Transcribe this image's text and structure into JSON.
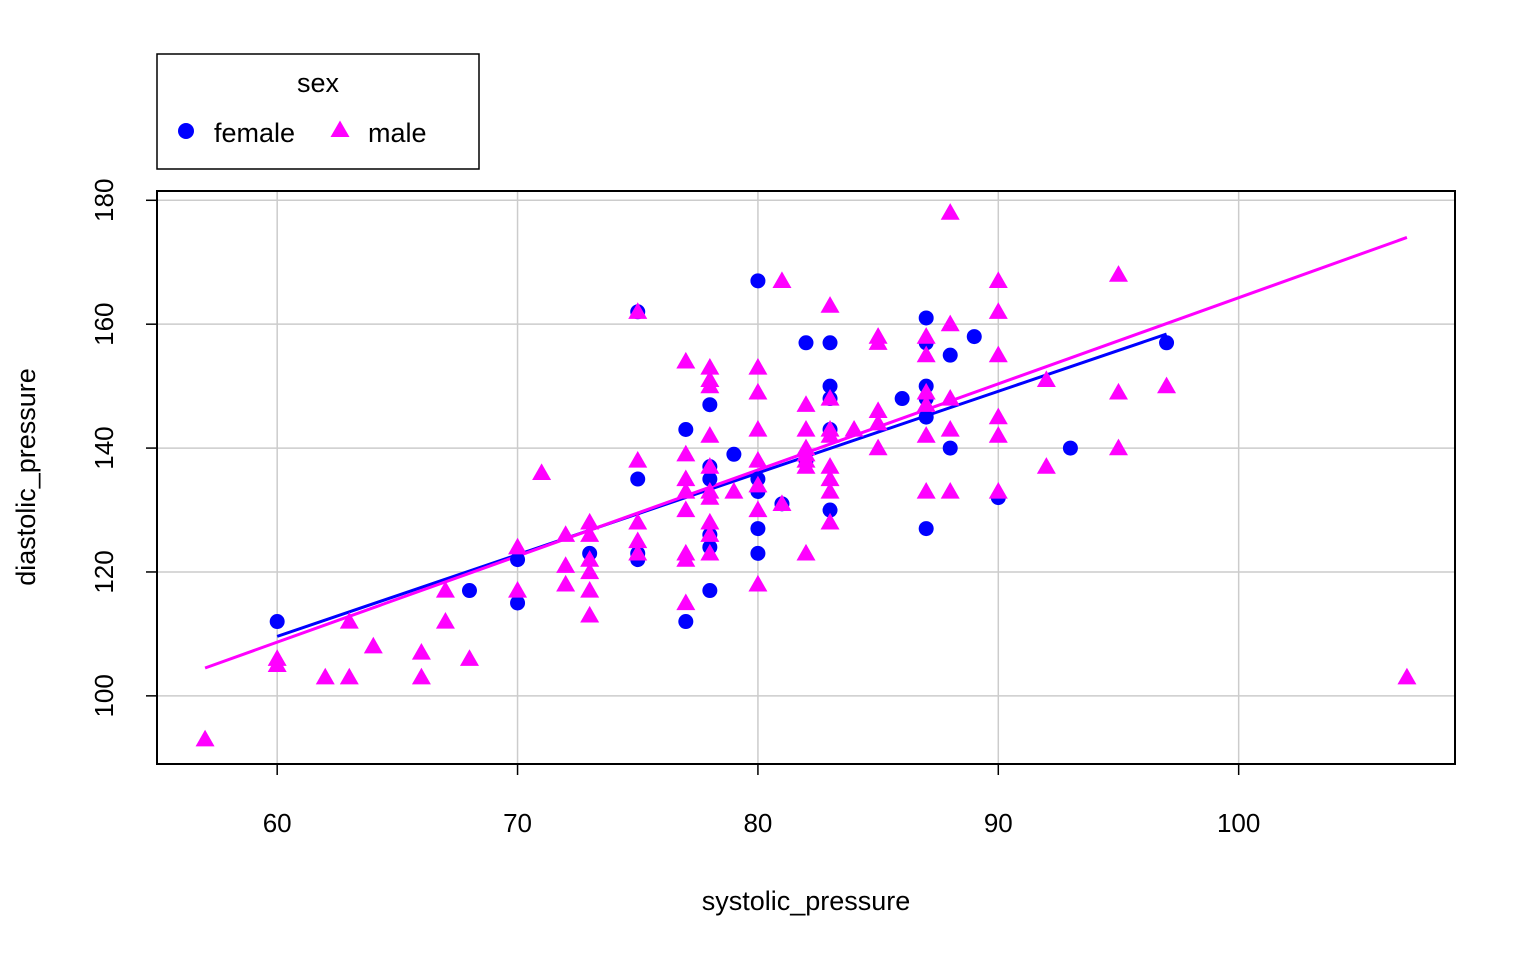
{
  "chart_data": {
    "type": "scatter",
    "title": "",
    "xlabel": "systolic_pressure",
    "ylabel": "diastolic_pressure",
    "xlim": [
      55,
      109
    ],
    "ylim": [
      89,
      181.5
    ],
    "x_ticks": [
      60,
      70,
      80,
      90,
      100
    ],
    "y_ticks": [
      100,
      120,
      140,
      160,
      180
    ],
    "grid": true,
    "legend": {
      "title": "sex",
      "placement": "top-left, above plot",
      "entries": [
        "female",
        "male"
      ]
    },
    "series": [
      {
        "name": "female",
        "color": "#0000ff",
        "marker": "circle",
        "points": [
          [
            60,
            112
          ],
          [
            68,
            117
          ],
          [
            70,
            122
          ],
          [
            70,
            115
          ],
          [
            73,
            123
          ],
          [
            75,
            162
          ],
          [
            75,
            135
          ],
          [
            75,
            123
          ],
          [
            75,
            122
          ],
          [
            77,
            143
          ],
          [
            77,
            112
          ],
          [
            78,
            147
          ],
          [
            78,
            137
          ],
          [
            78,
            135
          ],
          [
            78,
            126
          ],
          [
            78,
            124
          ],
          [
            78,
            117
          ],
          [
            79,
            139
          ],
          [
            80,
            167
          ],
          [
            80,
            135
          ],
          [
            80,
            133
          ],
          [
            80,
            127
          ],
          [
            80,
            123
          ],
          [
            81,
            131
          ],
          [
            82,
            157
          ],
          [
            82,
            138
          ],
          [
            83,
            157
          ],
          [
            83,
            150
          ],
          [
            83,
            148
          ],
          [
            83,
            143
          ],
          [
            83,
            130
          ],
          [
            86,
            148
          ],
          [
            87,
            161
          ],
          [
            87,
            157
          ],
          [
            87,
            150
          ],
          [
            87,
            148
          ],
          [
            87,
            145
          ],
          [
            87,
            127
          ],
          [
            88,
            155
          ],
          [
            88,
            140
          ],
          [
            89,
            158
          ],
          [
            90,
            132
          ],
          [
            93,
            140
          ],
          [
            97,
            157
          ]
        ],
        "regression": {
          "x": [
            60,
            97
          ],
          "y": [
            109.6,
            158.4
          ]
        }
      },
      {
        "name": "male",
        "color": "#ff00ff",
        "marker": "triangle",
        "points": [
          [
            57,
            93
          ],
          [
            60,
            106
          ],
          [
            60,
            105
          ],
          [
            62,
            103
          ],
          [
            63,
            112
          ],
          [
            63,
            103
          ],
          [
            64,
            108
          ],
          [
            66,
            107
          ],
          [
            66,
            103
          ],
          [
            67,
            117
          ],
          [
            67,
            112
          ],
          [
            68,
            106
          ],
          [
            70,
            124
          ],
          [
            70,
            117
          ],
          [
            71,
            136
          ],
          [
            72,
            126
          ],
          [
            72,
            121
          ],
          [
            72,
            118
          ],
          [
            73,
            128
          ],
          [
            73,
            126
          ],
          [
            73,
            122
          ],
          [
            73,
            120
          ],
          [
            73,
            117
          ],
          [
            73,
            113
          ],
          [
            75,
            162
          ],
          [
            75,
            138
          ],
          [
            75,
            128
          ],
          [
            75,
            125
          ],
          [
            75,
            123
          ],
          [
            77,
            154
          ],
          [
            77,
            139
          ],
          [
            77,
            135
          ],
          [
            77,
            133
          ],
          [
            77,
            130
          ],
          [
            77,
            123
          ],
          [
            77,
            122
          ],
          [
            77,
            115
          ],
          [
            78,
            153
          ],
          [
            78,
            151
          ],
          [
            78,
            150
          ],
          [
            78,
            142
          ],
          [
            78,
            137
          ],
          [
            78,
            133
          ],
          [
            78,
            132
          ],
          [
            78,
            128
          ],
          [
            78,
            126
          ],
          [
            78,
            123
          ],
          [
            79,
            133
          ],
          [
            80,
            153
          ],
          [
            80,
            149
          ],
          [
            80,
            143
          ],
          [
            80,
            138
          ],
          [
            80,
            134
          ],
          [
            80,
            130
          ],
          [
            80,
            118
          ],
          [
            81,
            167
          ],
          [
            81,
            131
          ],
          [
            82,
            147
          ],
          [
            82,
            143
          ],
          [
            82,
            140
          ],
          [
            82,
            139
          ],
          [
            82,
            138
          ],
          [
            82,
            137
          ],
          [
            82,
            123
          ],
          [
            83,
            163
          ],
          [
            83,
            148
          ],
          [
            83,
            143
          ],
          [
            83,
            142
          ],
          [
            83,
            137
          ],
          [
            83,
            135
          ],
          [
            83,
            133
          ],
          [
            83,
            128
          ],
          [
            84,
            143
          ],
          [
            85,
            158
          ],
          [
            85,
            157
          ],
          [
            85,
            146
          ],
          [
            85,
            144
          ],
          [
            85,
            140
          ],
          [
            87,
            158
          ],
          [
            87,
            155
          ],
          [
            87,
            149
          ],
          [
            87,
            147
          ],
          [
            87,
            142
          ],
          [
            87,
            133
          ],
          [
            88,
            178
          ],
          [
            88,
            160
          ],
          [
            88,
            148
          ],
          [
            88,
            143
          ],
          [
            88,
            133
          ],
          [
            90,
            167
          ],
          [
            90,
            162
          ],
          [
            90,
            155
          ],
          [
            90,
            145
          ],
          [
            90,
            142
          ],
          [
            90,
            133
          ],
          [
            92,
            151
          ],
          [
            92,
            137
          ],
          [
            95,
            168
          ],
          [
            95,
            149
          ],
          [
            95,
            140
          ],
          [
            97,
            150
          ],
          [
            107,
            103
          ]
        ],
        "regression": {
          "x": [
            57,
            107
          ],
          "y": [
            104.5,
            174.0
          ]
        }
      }
    ]
  }
}
